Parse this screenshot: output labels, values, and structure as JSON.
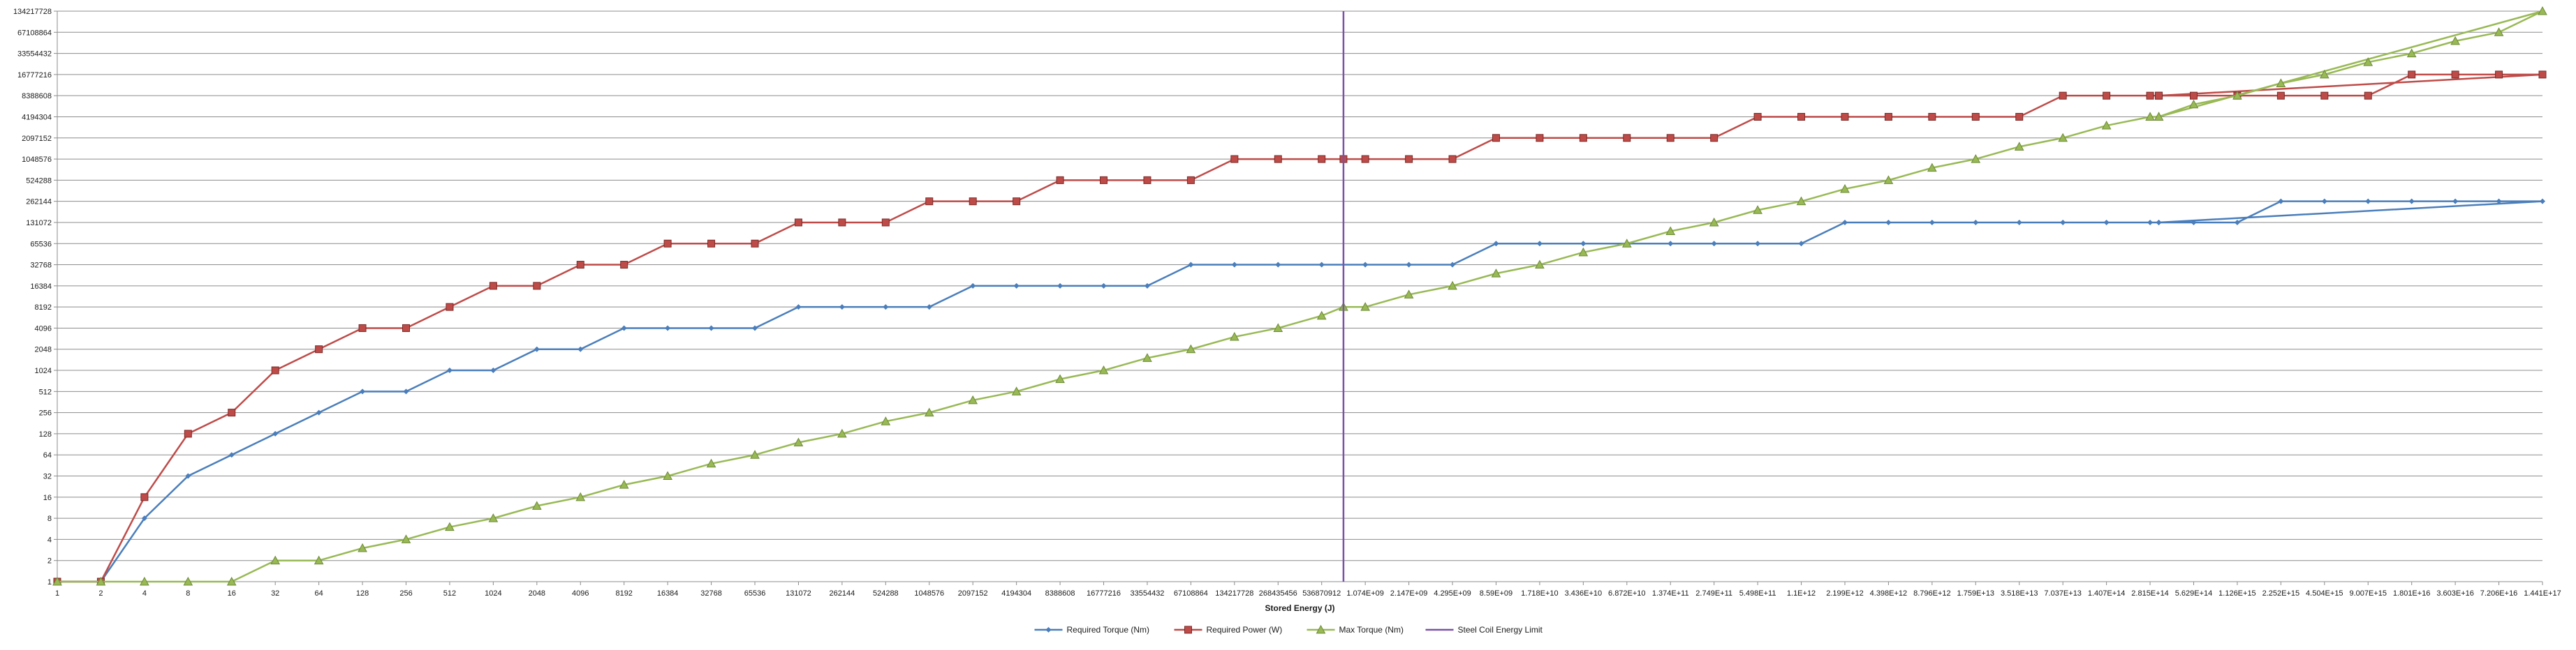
{
  "chart_data": {
    "type": "line",
    "xlabel": "Stored Energy (J)",
    "y_scale": "log2",
    "ylim": [
      1,
      134217728
    ],
    "grid": true,
    "legend_position": "bottom",
    "y_ticks": [
      "1",
      "2",
      "4",
      "8",
      "16",
      "32",
      "64",
      "128",
      "256",
      "512",
      "1024",
      "2048",
      "4096",
      "8192",
      "16384",
      "32768",
      "65536",
      "131072",
      "262144",
      "524288",
      "1048576",
      "2097152",
      "4194304",
      "8388608",
      "16777216",
      "33554432",
      "67108864",
      "134217728"
    ],
    "categories": [
      "1",
      "2",
      "4",
      "8",
      "16",
      "32",
      "64",
      "128",
      "256",
      "512",
      "1024",
      "2048",
      "4096",
      "8192",
      "16384",
      "32768",
      "65536",
      "131072",
      "262144",
      "524288",
      "1048576",
      "2097152",
      "4194304",
      "8388608",
      "16777216",
      "33554432",
      "67108864",
      "134217728",
      "268435456",
      "536870912",
      "1.074E+09",
      "2.147E+09",
      "4.295E+09",
      "8.59E+09",
      "1.718E+10",
      "3.436E+10",
      "6.872E+10",
      "1.374E+11",
      "2.749E+11",
      "5.498E+11",
      "1.1E+12",
      "2.199E+12",
      "4.398E+12",
      "8.796E+12",
      "1.759E+13",
      "3.518E+13",
      "7.037E+13",
      "1.407E+14",
      "2.815E+14",
      "5.629E+14",
      "1.126E+15",
      "2.252E+15",
      "4.504E+15",
      "9.007E+15",
      "1.801E+16",
      "3.603E+16",
      "7.206E+16",
      "1.441E+17"
    ],
    "series": [
      {
        "name": "Required Torque (Nm)",
        "color": "#4a7ebb",
        "marker": "diamond",
        "points": [
          [
            0,
            1
          ],
          [
            1,
            1
          ],
          [
            2,
            8
          ],
          [
            3,
            32
          ],
          [
            4,
            64
          ],
          [
            5,
            128
          ],
          [
            6,
            256
          ],
          [
            7,
            512
          ],
          [
            8,
            512
          ],
          [
            9,
            1024
          ],
          [
            10,
            1024
          ],
          [
            11,
            2048
          ],
          [
            12,
            2048
          ],
          [
            13,
            4096
          ],
          [
            14,
            4096
          ],
          [
            15,
            4096
          ],
          [
            16,
            4096
          ],
          [
            17,
            8192
          ],
          [
            18,
            8192
          ],
          [
            19,
            8192
          ],
          [
            20,
            8192
          ],
          [
            21,
            16384
          ],
          [
            22,
            16384
          ],
          [
            23,
            16384
          ],
          [
            24,
            16384
          ],
          [
            25,
            16384
          ],
          [
            26,
            32768
          ],
          [
            27,
            32768
          ],
          [
            28,
            32768
          ],
          [
            29,
            32768
          ],
          [
            30,
            32768
          ],
          [
            31,
            32768
          ],
          [
            32,
            32768
          ],
          [
            33,
            65536
          ],
          [
            34,
            65536
          ],
          [
            35,
            65536
          ],
          [
            36,
            65536
          ],
          [
            37,
            65536
          ],
          [
            38,
            65536
          ],
          [
            39,
            65536
          ],
          [
            40,
            65536
          ],
          [
            41,
            131072
          ],
          [
            42,
            131072
          ],
          [
            43,
            131072
          ],
          [
            44,
            131072
          ],
          [
            45,
            131072
          ],
          [
            46,
            131072
          ],
          [
            47,
            131072
          ],
          [
            48,
            131072
          ],
          [
            48.2,
            131072
          ],
          [
            49,
            131072
          ],
          [
            50,
            131072
          ],
          [
            51,
            262144
          ],
          [
            52,
            262144
          ],
          [
            53,
            262144
          ],
          [
            54,
            262144
          ],
          [
            55,
            262144
          ],
          [
            56,
            262144
          ],
          [
            57,
            262144
          ],
          [
            48.2,
            131072
          ]
        ]
      },
      {
        "name": "Required Power (W)",
        "color": "#be4b48",
        "marker": "square",
        "points": [
          [
            0,
            1
          ],
          [
            1,
            1
          ],
          [
            2,
            16
          ],
          [
            3,
            128
          ],
          [
            4,
            256
          ],
          [
            5,
            1024
          ],
          [
            6,
            2048
          ],
          [
            7,
            4096
          ],
          [
            8,
            4096
          ],
          [
            9,
            8192
          ],
          [
            10,
            16384
          ],
          [
            11,
            16384
          ],
          [
            12,
            32768
          ],
          [
            13,
            32768
          ],
          [
            14,
            65536
          ],
          [
            15,
            65536
          ],
          [
            16,
            65536
          ],
          [
            17,
            131072
          ],
          [
            18,
            131072
          ],
          [
            19,
            131072
          ],
          [
            20,
            262144
          ],
          [
            21,
            262144
          ],
          [
            22,
            262144
          ],
          [
            23,
            524288
          ],
          [
            24,
            524288
          ],
          [
            25,
            524288
          ],
          [
            26,
            524288
          ],
          [
            27,
            1048576
          ],
          [
            28,
            1048576
          ],
          [
            29,
            1048576
          ],
          [
            29.5,
            1048576
          ],
          [
            30,
            1048576
          ],
          [
            31,
            1048576
          ],
          [
            32,
            1048576
          ],
          [
            33,
            2097152
          ],
          [
            34,
            2097152
          ],
          [
            35,
            2097152
          ],
          [
            36,
            2097152
          ],
          [
            37,
            2097152
          ],
          [
            38,
            2097152
          ],
          [
            39,
            4194304
          ],
          [
            40,
            4194304
          ],
          [
            41,
            4194304
          ],
          [
            42,
            4194304
          ],
          [
            43,
            4194304
          ],
          [
            44,
            4194304
          ],
          [
            45,
            4194304
          ],
          [
            46,
            8388608
          ],
          [
            47,
            8388608
          ],
          [
            48,
            8388608
          ],
          [
            48.2,
            8388608
          ],
          [
            49,
            8388608
          ],
          [
            50,
            8388608
          ],
          [
            51,
            8388608
          ],
          [
            52,
            8388608
          ],
          [
            53,
            8388608
          ],
          [
            54,
            16777216
          ],
          [
            55,
            16777216
          ],
          [
            56,
            16777216
          ],
          [
            57,
            16777216
          ],
          [
            48.2,
            8388608
          ]
        ]
      },
      {
        "name": "Max Torque (Nm)",
        "color": "#98b954",
        "marker": "triangle",
        "points": [
          [
            0,
            1
          ],
          [
            1,
            1
          ],
          [
            2,
            1
          ],
          [
            3,
            1
          ],
          [
            4,
            1
          ],
          [
            5,
            2
          ],
          [
            6,
            2
          ],
          [
            7,
            3
          ],
          [
            8,
            4
          ],
          [
            9,
            6
          ],
          [
            10,
            8
          ],
          [
            11,
            12
          ],
          [
            12,
            16
          ],
          [
            13,
            24
          ],
          [
            14,
            32
          ],
          [
            15,
            48
          ],
          [
            16,
            64
          ],
          [
            17,
            96
          ],
          [
            18,
            128
          ],
          [
            19,
            192
          ],
          [
            20,
            256
          ],
          [
            21,
            384
          ],
          [
            22,
            512
          ],
          [
            23,
            768
          ],
          [
            24,
            1024
          ],
          [
            25,
            1536
          ],
          [
            26,
            2048
          ],
          [
            27,
            3072
          ],
          [
            28,
            4096
          ],
          [
            29,
            6144
          ],
          [
            29.5,
            8192
          ],
          [
            30,
            8192
          ],
          [
            31,
            12288
          ],
          [
            32,
            16384
          ],
          [
            33,
            24576
          ],
          [
            34,
            32768
          ],
          [
            35,
            49152
          ],
          [
            36,
            65536
          ],
          [
            37,
            98304
          ],
          [
            38,
            131072
          ],
          [
            39,
            196608
          ],
          [
            40,
            262144
          ],
          [
            41,
            393216
          ],
          [
            42,
            524288
          ],
          [
            43,
            786432
          ],
          [
            44,
            1048576
          ],
          [
            45,
            1572864
          ],
          [
            46,
            2097152
          ],
          [
            47,
            3145728
          ],
          [
            48,
            4194304
          ],
          [
            48.2,
            4194304
          ],
          [
            49,
            6291456
          ],
          [
            50,
            8388608
          ],
          [
            51,
            12582912
          ],
          [
            52,
            16777216
          ],
          [
            53,
            25165824
          ],
          [
            54,
            33554432
          ],
          [
            55,
            50331648
          ],
          [
            56,
            67108864
          ],
          [
            57,
            134217728
          ],
          [
            48.2,
            4194304
          ]
        ]
      },
      {
        "name": "Steel Coil Energy Limit",
        "color": "#7b52a8",
        "marker": "none",
        "x_index": 29.5
      }
    ]
  }
}
